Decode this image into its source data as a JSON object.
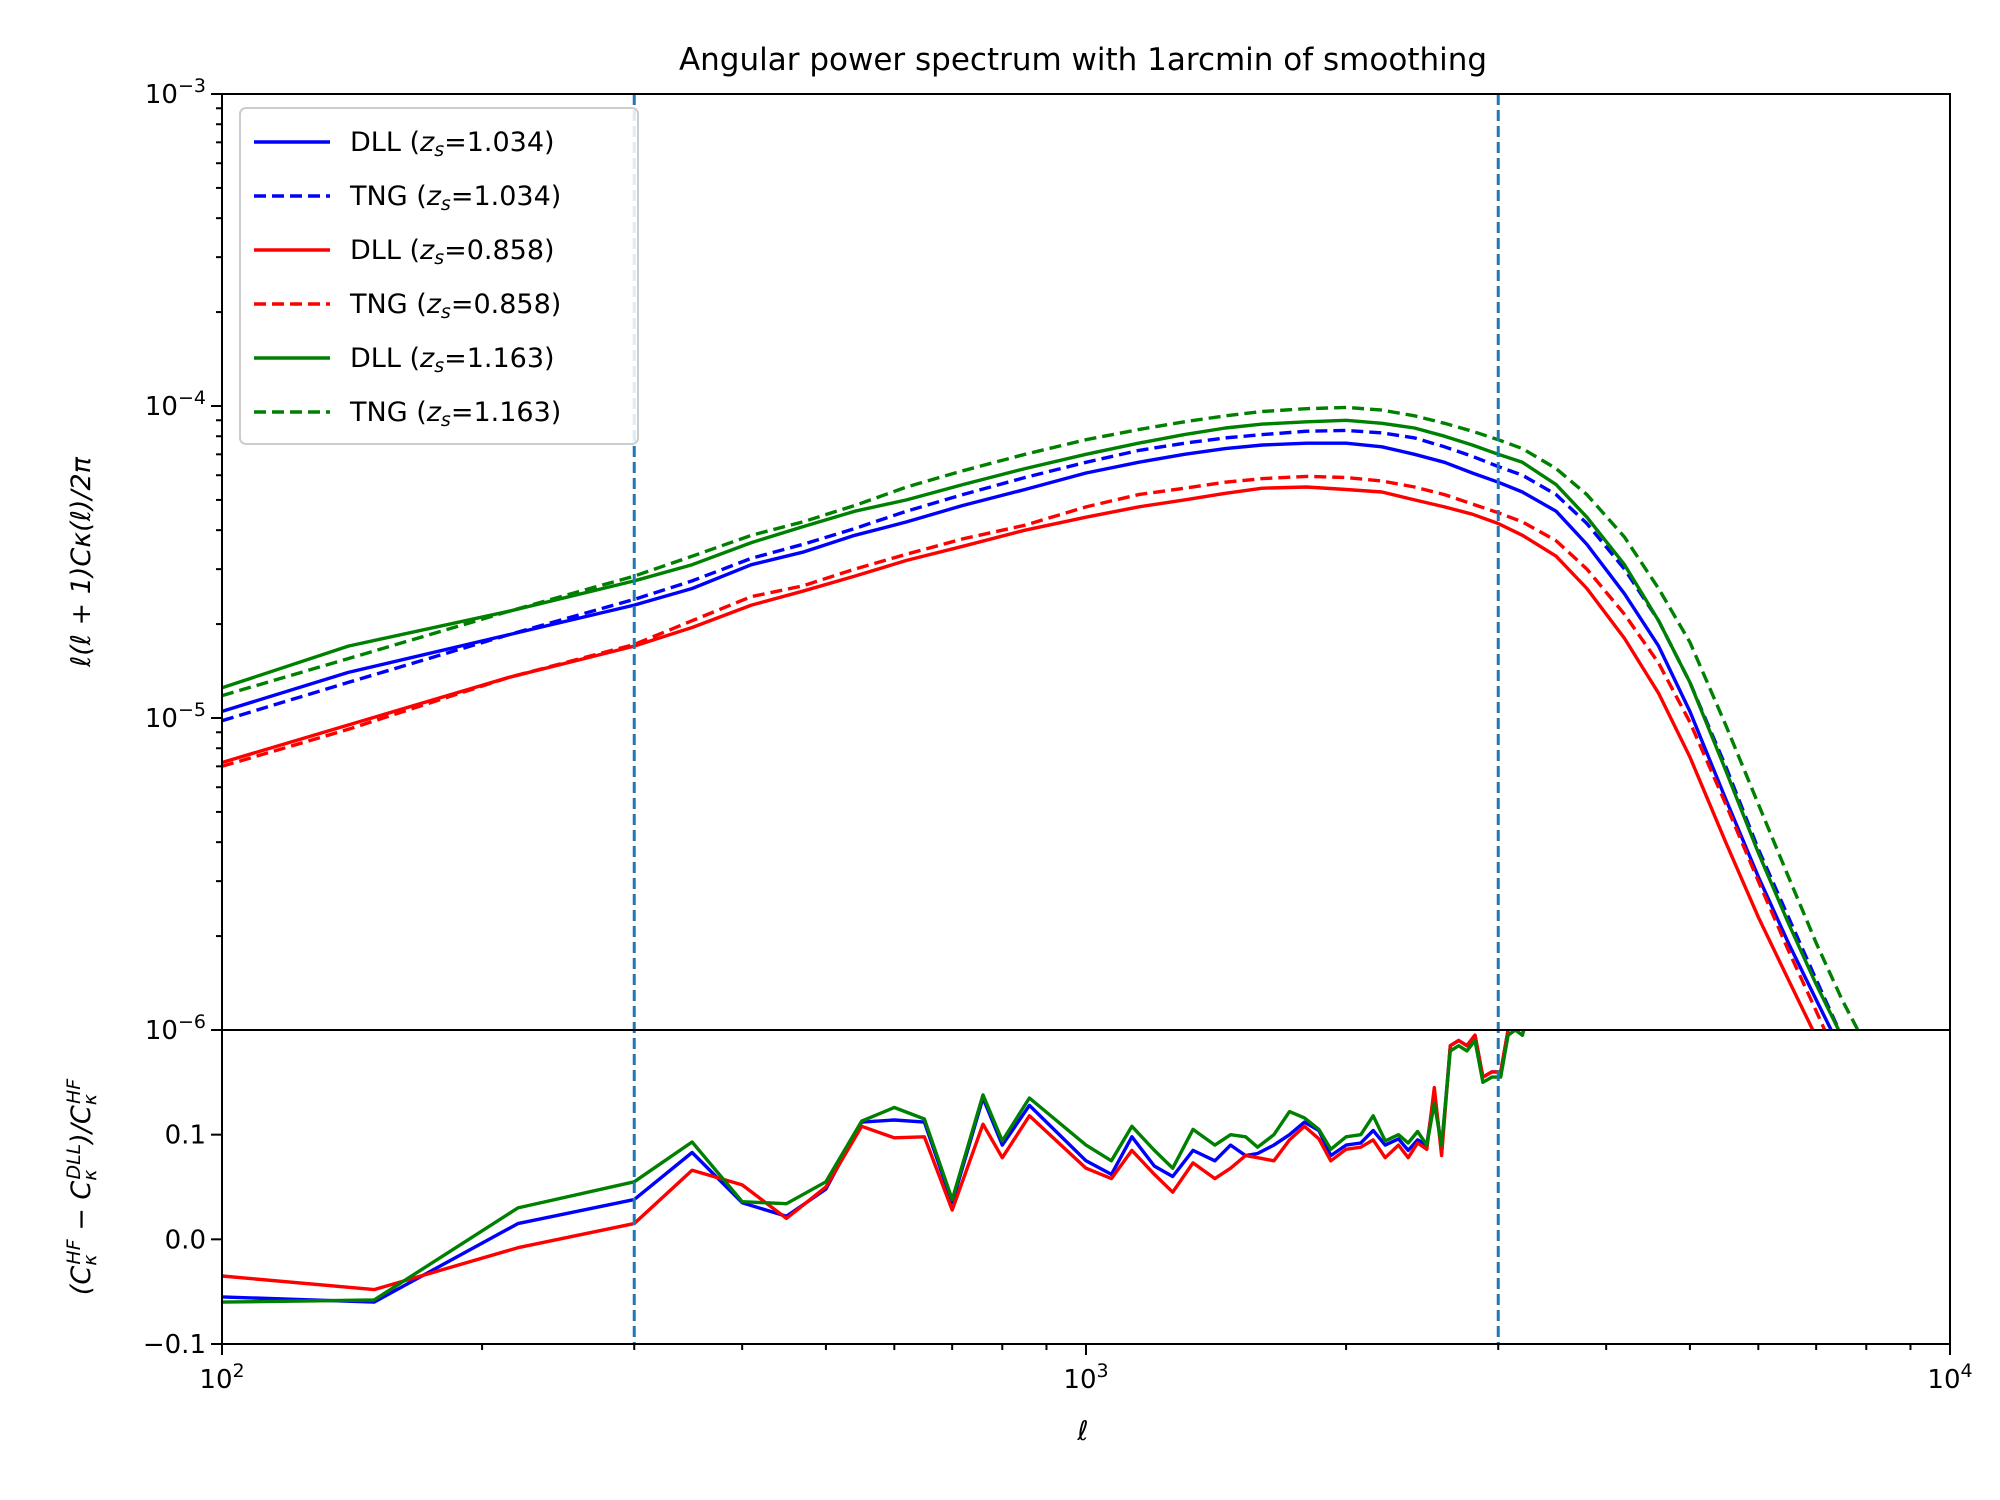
{
  "chart_data": [
    {
      "type": "line",
      "title": "Angular power spectrum with 1arcmin of smoothing",
      "xlabel": "",
      "ylabel": "ℓ(ℓ + 1)Cκ(ℓ)/2π",
      "xscale": "log",
      "yscale": "log",
      "xlim": [
        100,
        10000
      ],
      "ylim": [
        1e-06,
        0.001
      ],
      "y_ticks": [
        {
          "value": 1e-06,
          "base": "10",
          "exp": "−6"
        },
        {
          "value": 1e-05,
          "base": "10",
          "exp": "−5"
        },
        {
          "value": 0.0001,
          "base": "10",
          "exp": "−4"
        },
        {
          "value": 0.001,
          "base": "10",
          "exp": "−3"
        }
      ],
      "grid": false,
      "legend_position": "top-left",
      "vlines": [
        300,
        3000
      ],
      "vline_color": "#1f77b4",
      "series": [
        {
          "name": "DLL (zs=1.034)",
          "name_main": "DLL (",
          "name_z": "z",
          "name_s": "s",
          "name_tail": "=1.034)",
          "color": "#0000ff",
          "dash": "solid",
          "x": [
            100,
            140,
            215,
            300,
            350,
            410,
            470,
            540,
            620,
            720,
            850,
            1000,
            1150,
            1300,
            1450,
            1600,
            1800,
            2000,
            2200,
            2400,
            2600,
            2800,
            3000,
            3200,
            3500,
            3800,
            4200,
            4600,
            5000,
            5500,
            6000,
            6500,
            7000,
            7500
          ],
          "y": [
            1.05e-05,
            1.4e-05,
            1.85e-05,
            2.3e-05,
            2.6e-05,
            3.1e-05,
            3.4e-05,
            3.85e-05,
            4.25e-05,
            4.8e-05,
            5.4e-05,
            6.1e-05,
            6.6e-05,
            7e-05,
            7.3e-05,
            7.5e-05,
            7.6e-05,
            7.6e-05,
            7.4e-05,
            7e-05,
            6.6e-05,
            6.1e-05,
            5.7e-05,
            5.3e-05,
            4.6e-05,
            3.6e-05,
            2.5e-05,
            1.7e-05,
            1.05e-05,
            5.5e-06,
            3.1e-06,
            1.9e-06,
            1.25e-06,
            8.5e-07
          ]
        },
        {
          "name": "TNG (zs=1.034)",
          "name_main": "TNG (",
          "name_z": "z",
          "name_s": "s",
          "name_tail": "=1.034)",
          "color": "#0000ff",
          "dash": "dashed",
          "x": [
            100,
            140,
            215,
            300,
            350,
            410,
            470,
            540,
            620,
            720,
            850,
            1000,
            1150,
            1300,
            1450,
            1600,
            1800,
            2000,
            2200,
            2400,
            2600,
            2800,
            3000,
            3200,
            3500,
            3800,
            4200,
            4600,
            5000,
            5500,
            6000,
            6500,
            7000,
            7500
          ],
          "y": [
            9.8e-06,
            1.3e-05,
            1.85e-05,
            2.4e-05,
            2.75e-05,
            3.25e-05,
            3.6e-05,
            4.05e-05,
            4.6e-05,
            5.2e-05,
            5.9e-05,
            6.6e-05,
            7.2e-05,
            7.6e-05,
            7.9e-05,
            8.1e-05,
            8.3e-05,
            8.35e-05,
            8.2e-05,
            7.9e-05,
            7.4e-05,
            6.9e-05,
            6.4e-05,
            6e-05,
            5.2e-05,
            4.2e-05,
            3e-05,
            2.05e-05,
            1.3e-05,
            7e-06,
            3.8e-06,
            2.3e-06,
            1.45e-06,
            9.5e-07
          ]
        },
        {
          "name": "DLL (zs=0.858)",
          "name_main": "DLL (",
          "name_z": "z",
          "name_s": "s",
          "name_tail": "=0.858)",
          "color": "#ff0000",
          "dash": "solid",
          "x": [
            100,
            140,
            215,
            300,
            350,
            410,
            470,
            540,
            620,
            720,
            850,
            1000,
            1150,
            1300,
            1450,
            1600,
            1800,
            2000,
            2200,
            2400,
            2600,
            2800,
            3000,
            3200,
            3500,
            3800,
            4200,
            4600,
            5000,
            5500,
            6000,
            6500,
            7000
          ],
          "y": [
            7.2e-06,
            9.5e-06,
            1.35e-05,
            1.7e-05,
            1.95e-05,
            2.3e-05,
            2.55e-05,
            2.85e-05,
            3.2e-05,
            3.55e-05,
            4e-05,
            4.4e-05,
            4.75e-05,
            5e-05,
            5.25e-05,
            5.45e-05,
            5.5e-05,
            5.4e-05,
            5.3e-05,
            5e-05,
            4.75e-05,
            4.5e-05,
            4.2e-05,
            3.85e-05,
            3.3e-05,
            2.6e-05,
            1.8e-05,
            1.2e-05,
            7.5e-06,
            4e-06,
            2.3e-06,
            1.45e-06,
            9.5e-07
          ]
        },
        {
          "name": "TNG (zs=0.858)",
          "name_main": "TNG (",
          "name_z": "z",
          "name_s": "s",
          "name_tail": "=0.858)",
          "color": "#ff0000",
          "dash": "dashed",
          "x": [
            100,
            140,
            215,
            300,
            350,
            410,
            470,
            540,
            620,
            720,
            850,
            1000,
            1150,
            1300,
            1450,
            1600,
            1800,
            2000,
            2200,
            2400,
            2600,
            2800,
            3000,
            3200,
            3500,
            3800,
            4200,
            4600,
            5000,
            5500,
            6000,
            6500,
            7000,
            7500
          ],
          "y": [
            7e-06,
            9.2e-06,
            1.35e-05,
            1.72e-05,
            2.05e-05,
            2.45e-05,
            2.65e-05,
            3e-05,
            3.35e-05,
            3.75e-05,
            4.15e-05,
            4.75e-05,
            5.2e-05,
            5.45e-05,
            5.7e-05,
            5.85e-05,
            5.95e-05,
            5.9e-05,
            5.75e-05,
            5.5e-05,
            5.2e-05,
            4.85e-05,
            4.55e-05,
            4.25e-05,
            3.7e-05,
            3e-05,
            2.15e-05,
            1.5e-05,
            9.7e-06,
            5.3e-06,
            3e-06,
            1.8e-06,
            1.15e-06,
            7.5e-07
          ]
        },
        {
          "name": "DLL (zs=1.163)",
          "name_main": "DLL (",
          "name_z": "z",
          "name_s": "s",
          "name_tail": "=1.163)",
          "color": "#008000",
          "dash": "solid",
          "x": [
            100,
            140,
            215,
            300,
            350,
            410,
            470,
            540,
            620,
            720,
            850,
            1000,
            1150,
            1300,
            1450,
            1600,
            1800,
            2000,
            2200,
            2400,
            2600,
            2800,
            3000,
            3200,
            3500,
            3800,
            4200,
            4600,
            5000,
            5500,
            6000,
            6500,
            7000,
            7500
          ],
          "y": [
            1.25e-05,
            1.7e-05,
            2.2e-05,
            2.75e-05,
            3.1e-05,
            3.65e-05,
            4.1e-05,
            4.6e-05,
            5e-05,
            5.6e-05,
            6.3e-05,
            7e-05,
            7.6e-05,
            8.1e-05,
            8.5e-05,
            8.75e-05,
            8.9e-05,
            9e-05,
            8.8e-05,
            8.5e-05,
            8e-05,
            7.5e-05,
            7e-05,
            6.6e-05,
            5.6e-05,
            4.4e-05,
            3.1e-05,
            2.05e-05,
            1.3e-05,
            6.8e-06,
            3.7e-06,
            2.2e-06,
            1.4e-06,
            9.5e-07
          ]
        },
        {
          "name": "TNG (zs=1.163)",
          "name_main": "TNG (",
          "name_z": "z",
          "name_s": "s",
          "name_tail": "=1.163)",
          "color": "#008000",
          "dash": "dashed",
          "x": [
            100,
            140,
            215,
            300,
            350,
            410,
            470,
            540,
            620,
            720,
            850,
            1000,
            1150,
            1300,
            1450,
            1600,
            1800,
            2000,
            2200,
            2400,
            2600,
            2800,
            3000,
            3200,
            3500,
            3800,
            4200,
            4600,
            5000,
            5500,
            6000,
            6500,
            7000,
            7500,
            7900
          ],
          "y": [
            1.18e-05,
            1.55e-05,
            2.2e-05,
            2.85e-05,
            3.3e-05,
            3.85e-05,
            4.25e-05,
            4.8e-05,
            5.5e-05,
            6.2e-05,
            7e-05,
            7.8e-05,
            8.4e-05,
            8.9e-05,
            9.3e-05,
            9.6e-05,
            9.8e-05,
            9.9e-05,
            9.7e-05,
            9.3e-05,
            8.8e-05,
            8.3e-05,
            7.8e-05,
            7.3e-05,
            6.3e-05,
            5.2e-05,
            3.8e-05,
            2.6e-05,
            1.75e-05,
            9.5e-06,
            5.3e-06,
            3.1e-06,
            1.9e-06,
            1.25e-06,
            9.5e-07
          ]
        }
      ]
    },
    {
      "type": "line",
      "title": "",
      "xlabel": "ℓ",
      "ylabel": "(Cκ^HF − Cκ^DLL)/Cκ^HF",
      "xscale": "log",
      "xlim": [
        100,
        10000
      ],
      "ylim": [
        -0.1,
        0.2
      ],
      "y_ticks": [
        -0.1,
        0.0,
        0.1
      ],
      "y_tick_labels": [
        "−0.1",
        "0.0",
        "0.1"
      ],
      "x_ticks": [
        {
          "value": 100,
          "base": "10",
          "exp": "2"
        },
        {
          "value": 1000,
          "base": "10",
          "exp": "3"
        },
        {
          "value": 10000,
          "base": "10",
          "exp": "4"
        }
      ],
      "grid": false,
      "vlines": [
        300,
        3000
      ],
      "vline_color": "#1f77b4",
      "series": [
        {
          "color": "#0000ff",
          "x": [
            100,
            150,
            220,
            300,
            350,
            400,
            450,
            500,
            550,
            600,
            650,
            700,
            760,
            800,
            860,
            1000,
            1070,
            1130,
            1200,
            1260,
            1330,
            1410,
            1470,
            1530,
            1580,
            1650,
            1720,
            1790,
            1860,
            1920,
            2000,
            2080,
            2150,
            2220,
            2300,
            2360,
            2420,
            2480,
            2530,
            2580,
            2640,
            2700,
            2760,
            2820,
            2880,
            2950,
            3020,
            3080,
            3140,
            3200,
            3270,
            3330
          ],
          "y": [
            -0.055,
            -0.06,
            0.015,
            0.038,
            0.083,
            0.035,
            0.022,
            0.048,
            0.112,
            0.114,
            0.112,
            0.035,
            0.135,
            0.09,
            0.128,
            0.075,
            0.062,
            0.098,
            0.07,
            0.06,
            0.085,
            0.075,
            0.09,
            0.08,
            0.082,
            0.09,
            0.1,
            0.112,
            0.104,
            0.08,
            0.09,
            0.092,
            0.104,
            0.09,
            0.096,
            0.085,
            0.095,
            0.09,
            0.14,
            0.085,
            0.185,
            0.19,
            0.185,
            0.195,
            0.155,
            0.16,
            0.16,
            0.2,
            0.205,
            0.2,
            0.23,
            0.235
          ]
        },
        {
          "color": "#ff0000",
          "x": [
            100,
            150,
            220,
            300,
            350,
            400,
            450,
            500,
            550,
            600,
            650,
            700,
            760,
            800,
            860,
            1000,
            1070,
            1130,
            1200,
            1260,
            1330,
            1410,
            1470,
            1530,
            1580,
            1650,
            1720,
            1790,
            1860,
            1920,
            2000,
            2080,
            2150,
            2220,
            2300,
            2360,
            2420,
            2480,
            2530,
            2580,
            2640,
            2700,
            2760,
            2820,
            2880,
            2950,
            3020,
            3080,
            3140,
            3200,
            3270,
            3330
          ],
          "y": [
            -0.035,
            -0.048,
            -0.008,
            0.015,
            0.066,
            0.052,
            0.02,
            0.05,
            0.108,
            0.097,
            0.098,
            0.028,
            0.11,
            0.078,
            0.118,
            0.068,
            0.058,
            0.085,
            0.062,
            0.045,
            0.073,
            0.058,
            0.068,
            0.08,
            0.078,
            0.075,
            0.095,
            0.108,
            0.096,
            0.075,
            0.086,
            0.088,
            0.095,
            0.078,
            0.09,
            0.078,
            0.092,
            0.086,
            0.145,
            0.08,
            0.185,
            0.19,
            0.185,
            0.195,
            0.155,
            0.16,
            0.16,
            0.2,
            0.205,
            0.2,
            0.23,
            0.235
          ]
        },
        {
          "color": "#008000",
          "x": [
            100,
            150,
            220,
            300,
            350,
            400,
            450,
            500,
            550,
            600,
            650,
            700,
            760,
            800,
            860,
            1000,
            1070,
            1130,
            1200,
            1260,
            1330,
            1410,
            1470,
            1530,
            1580,
            1650,
            1720,
            1790,
            1860,
            1920,
            2000,
            2080,
            2150,
            2220,
            2300,
            2360,
            2420,
            2480,
            2530,
            2580,
            2640,
            2700,
            2760,
            2820,
            2880,
            2950,
            3020,
            3080,
            3140,
            3200,
            3270,
            3330
          ],
          "y": [
            -0.06,
            -0.058,
            0.03,
            0.055,
            0.093,
            0.036,
            0.034,
            0.055,
            0.113,
            0.126,
            0.115,
            0.038,
            0.138,
            0.094,
            0.135,
            0.09,
            0.075,
            0.108,
            0.085,
            0.068,
            0.105,
            0.09,
            0.1,
            0.098,
            0.088,
            0.1,
            0.122,
            0.116,
            0.105,
            0.086,
            0.098,
            0.1,
            0.118,
            0.094,
            0.1,
            0.092,
            0.103,
            0.09,
            0.13,
            0.09,
            0.18,
            0.185,
            0.18,
            0.19,
            0.15,
            0.155,
            0.155,
            0.195,
            0.2,
            0.195,
            0.225,
            0.23
          ]
        }
      ]
    }
  ]
}
